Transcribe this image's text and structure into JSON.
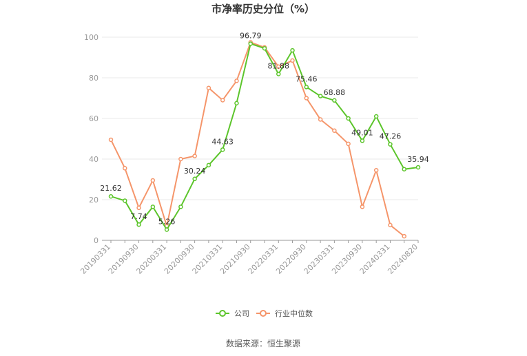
{
  "title": "市净率历史分位（%）",
  "source": "数据来源：恒生聚源",
  "legend": [
    {
      "label": "公司",
      "color": "#5cc52b"
    },
    {
      "label": "行业中位数",
      "color": "#f5956a"
    }
  ],
  "chart_data": {
    "type": "line",
    "x": [
      "20190331",
      "20190630",
      "20190930",
      "20191231",
      "20200331",
      "20200630",
      "20200930",
      "20201231",
      "20210331",
      "20210630",
      "20210930",
      "20211231",
      "20220331",
      "20220630",
      "20220930",
      "20221231",
      "20230331",
      "20230630",
      "20230930",
      "20231231",
      "20240331",
      "20240630",
      "20240820"
    ],
    "x_tick_labels": [
      "20190331",
      "20190930",
      "20200331",
      "20200930",
      "20210331",
      "20210930",
      "20220331",
      "20220930",
      "20230331",
      "20230930",
      "20240331",
      "20240820"
    ],
    "ylim": [
      0,
      100
    ],
    "y_ticks": [
      0,
      20,
      40,
      60,
      80,
      100
    ],
    "grid": true,
    "legend_position": "bottom",
    "series": [
      {
        "name": "公司",
        "color": "#5cc52b",
        "values": [
          21.62,
          19.5,
          7.74,
          16.5,
          5.26,
          16.5,
          30.24,
          37.0,
          44.63,
          67.5,
          96.79,
          94.5,
          81.88,
          93.5,
          75.46,
          71.0,
          68.88,
          60.0,
          49.01,
          61.0,
          47.26,
          35.0,
          35.94
        ],
        "labels": [
          "21.62",
          null,
          "7.74",
          null,
          "5.26",
          null,
          "30.24",
          null,
          "44.63",
          null,
          "96.79",
          null,
          "81.88",
          null,
          "75.46",
          null,
          "68.88",
          null,
          "49.01",
          null,
          "47.26",
          null,
          "35.94"
        ]
      },
      {
        "name": "行业中位数",
        "color": "#f5956a",
        "values": [
          49.5,
          35.5,
          16.0,
          29.5,
          7.0,
          40.0,
          41.5,
          75.0,
          69.0,
          78.5,
          97.5,
          95.0,
          85.5,
          88.5,
          70.0,
          59.5,
          54.0,
          47.5,
          16.5,
          34.5,
          7.5,
          2.0,
          null
        ]
      }
    ]
  }
}
